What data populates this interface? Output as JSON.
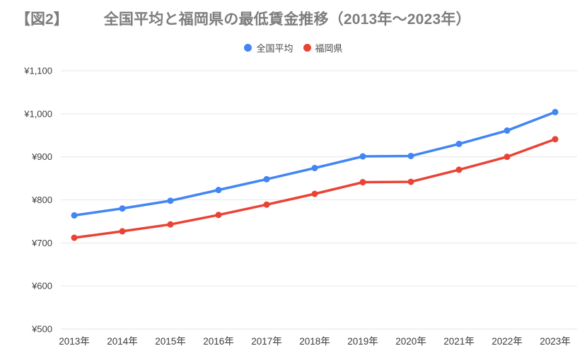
{
  "figure": {
    "tag": "【図2】",
    "title": "全国平均と福岡県の最低賃金推移（2013年〜2023年）"
  },
  "legend": {
    "items": [
      {
        "label": "全国平均",
        "color": "#4285f4"
      },
      {
        "label": "福岡県",
        "color": "#ea4335"
      }
    ]
  },
  "chart_data": {
    "type": "line",
    "title": "全国平均と福岡県の最低賃金推移（2013年〜2023年）",
    "categories": [
      "2013年",
      "2014年",
      "2015年",
      "2016年",
      "2017年",
      "2018年",
      "2019年",
      "2020年",
      "2021年",
      "2022年",
      "2023年"
    ],
    "series": [
      {
        "name": "全国平均",
        "color": "#4285f4",
        "values": [
          764,
          780,
          798,
          823,
          848,
          874,
          901,
          902,
          930,
          961,
          1004
        ]
      },
      {
        "name": "福岡県",
        "color": "#ea4335",
        "values": [
          712,
          727,
          743,
          765,
          789,
          814,
          841,
          842,
          870,
          900,
          941
        ]
      }
    ],
    "xlabel": "",
    "ylabel": "",
    "ylim": [
      500,
      1100
    ],
    "y_ticks": [
      {
        "value": 500,
        "label": "¥500"
      },
      {
        "value": 600,
        "label": "¥600"
      },
      {
        "value": 700,
        "label": "¥700"
      },
      {
        "value": 800,
        "label": "¥800"
      },
      {
        "value": 900,
        "label": "¥900"
      },
      {
        "value": 1000,
        "label": "¥1,000"
      },
      {
        "value": 1100,
        "label": "¥1,100"
      }
    ],
    "grid": true,
    "legend_position": "top",
    "marker": "circle"
  },
  "colors": {
    "national_average": "#4285f4",
    "fukuoka": "#ea4335",
    "grid": "#e6e6e6",
    "axis_text": "#3d3d3d",
    "title_text": "#7d7d7d",
    "legend_text": "#4a4a4a",
    "background": "#ffffff"
  }
}
